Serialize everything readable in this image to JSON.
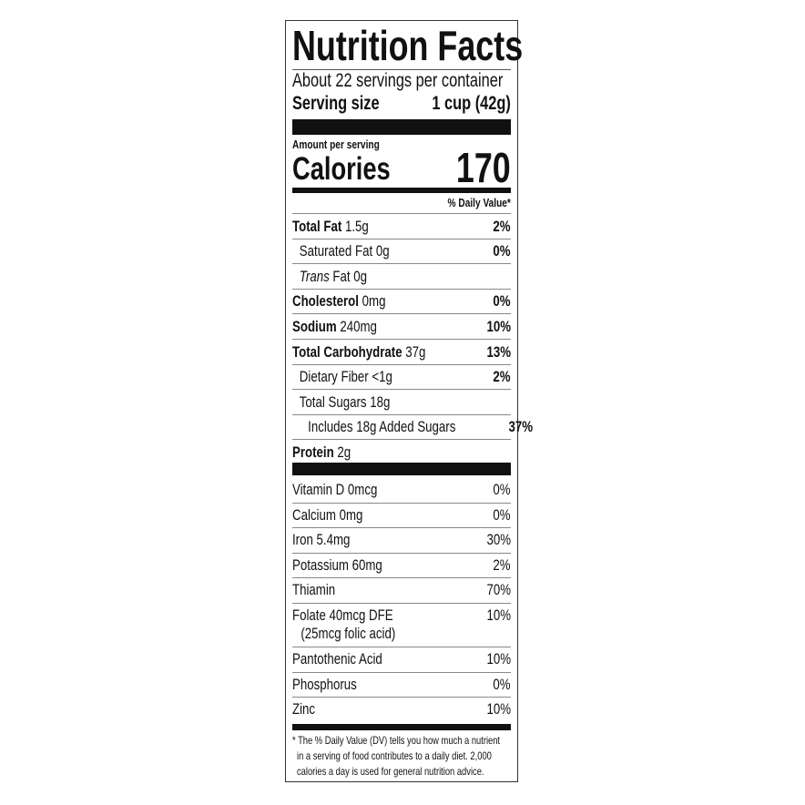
{
  "title": "Nutrition Facts",
  "servings_per_container": "About 22 servings per container",
  "serving_size_label": "Serving size",
  "serving_size_value": "1 cup (42g)",
  "amount_per_serving": "Amount per serving",
  "calories_label": "Calories",
  "calories_value": "170",
  "daily_value_header": "% Daily Value*",
  "nutrients": [
    {
      "name": "Total Fat",
      "amount": "1.5g",
      "dv": "2%",
      "bold": true,
      "indent": 0
    },
    {
      "name": "Saturated Fat",
      "amount": "0g",
      "dv": "0%",
      "bold": false,
      "indent": 1
    },
    {
      "name": "Trans",
      "amount": "Fat 0g",
      "dv": "",
      "bold": false,
      "indent": 1,
      "italic": true
    },
    {
      "name": "Cholesterol",
      "amount": "0mg",
      "dv": "0%",
      "bold": true,
      "indent": 0
    },
    {
      "name": "Sodium",
      "amount": "240mg",
      "dv": "10%",
      "bold": true,
      "indent": 0
    },
    {
      "name": "Total Carbohydrate",
      "amount": "37g",
      "dv": "13%",
      "bold": true,
      "indent": 0
    },
    {
      "name": "Dietary Fiber",
      "amount": "<1g",
      "dv": "2%",
      "bold": false,
      "indent": 1
    },
    {
      "name": "Total Sugars",
      "amount": "18g",
      "dv": "",
      "bold": false,
      "indent": 1
    },
    {
      "name": "Includes 18g Added Sugars",
      "amount": "",
      "dv": "37%",
      "bold": false,
      "indent": 2
    },
    {
      "name": "Protein",
      "amount": "2g",
      "dv": "",
      "bold": true,
      "indent": 0
    }
  ],
  "vitamins": [
    {
      "name": "Vitamin D 0mcg",
      "dv": "0%"
    },
    {
      "name": "Calcium 0mg",
      "dv": "0%"
    },
    {
      "name": "Iron 5.4mg",
      "dv": "30%"
    },
    {
      "name": "Potassium 60mg",
      "dv": "2%"
    },
    {
      "name": "Thiamin",
      "dv": "70%"
    },
    {
      "name": "Folate 40mcg DFE",
      "sub": "(25mcg folic acid)",
      "dv": "10%"
    },
    {
      "name": "Pantothenic Acid",
      "dv": "10%"
    },
    {
      "name": "Phosphorus",
      "dv": "0%"
    },
    {
      "name": "Zinc",
      "dv": "10%"
    }
  ],
  "footnote": [
    "* The % Daily Value (DV) tells you how much a nutrient",
    "in a serving of food contributes to a daily diet. 2,000",
    "calories a day is used for general nutrition advice."
  ]
}
